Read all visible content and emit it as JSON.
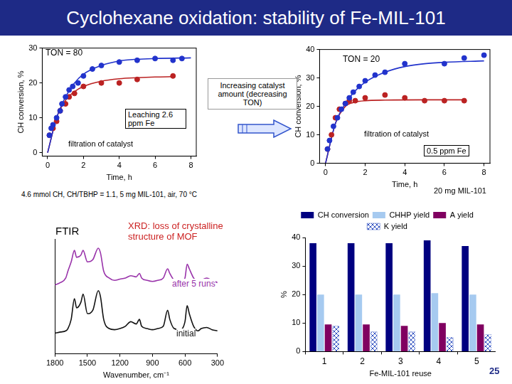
{
  "title": "Cyclohexane oxidation: stability of Fe-MIL-101",
  "texts": {
    "arrow_note": "Increasing catalyst amount (decreasing TON)",
    "conditions": "4.6 mmol CH, CH/TBHP = 1.1, 5 mg MIL-101, air, 70 °C",
    "xrd": "XRD: loss of crystalline structure of MOF",
    "page": "25"
  },
  "chart_data": [
    {
      "type": "scatter",
      "annotations": [
        "TON = 80",
        "Leaching 2.6 ppm Fe",
        "filtration of catalyst"
      ],
      "x_label": "Time, h",
      "y_label": "CH conversion, %",
      "xlim": [
        -0.3,
        8.3
      ],
      "xticks": [
        0,
        2,
        4,
        6,
        8
      ],
      "ylim": [
        -1,
        30
      ],
      "yticks": [
        0,
        10,
        20,
        30
      ],
      "grid": false,
      "series": [
        {
          "color": "#2233cc",
          "type": "scatter",
          "marker": "circle",
          "x": [
            0.1,
            0.2,
            0.3,
            0.5,
            0.7,
            0.8,
            1,
            1.2,
            1.4,
            1.7,
            2,
            2.5,
            3,
            4,
            5,
            6,
            7,
            7.5
          ],
          "values": [
            5,
            7,
            8,
            10,
            12,
            14,
            16,
            18,
            19,
            20,
            22,
            24,
            25,
            26,
            26.5,
            27,
            26.5,
            27
          ]
        },
        {
          "color": "#bb2222",
          "type": "scatter",
          "marker": "circle",
          "x": [
            0.1,
            0.3,
            0.5,
            0.7,
            1,
            1.2,
            1.5,
            2,
            3,
            4,
            5,
            7
          ],
          "values": [
            5,
            7,
            9,
            12,
            14,
            16,
            17,
            19,
            20,
            20,
            21,
            22
          ]
        },
        {
          "color": "#2233cc",
          "type": "line",
          "marker": "none",
          "line_style": "solid",
          "x": [
            0,
            0.5,
            1,
            1.5,
            2,
            3,
            4,
            5,
            6,
            8
          ],
          "values": [
            0,
            10,
            16,
            20,
            22.5,
            25,
            26.3,
            26.8,
            27,
            27.2
          ]
        },
        {
          "color": "#bb2222",
          "type": "line",
          "marker": "none",
          "line_style": "solid",
          "x": [
            0,
            0.5,
            1,
            1.5,
            2,
            3,
            4,
            5,
            6,
            7
          ],
          "values": [
            0,
            10,
            15,
            17.5,
            19,
            20.5,
            21.2,
            21.5,
            21.7,
            21.8
          ]
        }
      ]
    },
    {
      "type": "scatter",
      "annotations": [
        "TON = 20",
        "filtration of catalyst",
        "0.5 ppm Fe",
        "20 mg MIL-101"
      ],
      "x_label": "Time, h",
      "y_label": "CH conversion, %",
      "xlim": [
        -0.3,
        8.3
      ],
      "xticks": [
        0,
        2,
        4,
        6,
        8
      ],
      "ylim": [
        0,
        40
      ],
      "yticks": [
        0,
        10,
        20,
        30,
        40
      ],
      "grid": false,
      "series": [
        {
          "color": "#2233cc",
          "type": "scatter",
          "marker": "circle",
          "x": [
            0.1,
            0.2,
            0.4,
            0.6,
            0.8,
            1,
            1.2,
            1.4,
            1.7,
            2,
            2.5,
            3,
            4,
            6,
            7,
            8
          ],
          "values": [
            5,
            8,
            13,
            16,
            19,
            21,
            23,
            25,
            27,
            29,
            31,
            32,
            35,
            35,
            37,
            38
          ]
        },
        {
          "color": "#bb2222",
          "type": "scatter",
          "marker": "circle",
          "x": [
            0.1,
            0.3,
            0.5,
            0.7,
            1,
            1.2,
            1.5,
            2,
            3,
            4,
            5,
            6,
            7
          ],
          "values": [
            5,
            10,
            16,
            19,
            21,
            22,
            22,
            23,
            24,
            23,
            22,
            22,
            22
          ]
        },
        {
          "color": "#2233cc",
          "type": "line",
          "marker": "none",
          "line_style": "solid",
          "x": [
            0,
            0.5,
            1,
            1.5,
            2,
            3,
            4,
            5,
            6,
            8
          ],
          "values": [
            0,
            14,
            21,
            25.5,
            28.5,
            32,
            34,
            35,
            35.5,
            36
          ]
        },
        {
          "color": "#bb2222",
          "type": "line",
          "marker": "none",
          "line_style": "solid",
          "x": [
            0,
            0.5,
            1,
            1.5,
            2,
            3,
            5,
            7
          ],
          "values": [
            0,
            14,
            20,
            21.5,
            22,
            22.2,
            22.3,
            22.3
          ]
        }
      ]
    },
    {
      "type": "line",
      "title": "FTIR",
      "x_label": "Wavenumber, cm⁻¹",
      "xlim": [
        1800,
        300
      ],
      "xticks": [
        1800,
        1500,
        1200,
        900,
        600,
        300
      ],
      "ylim": [
        0,
        100
      ],
      "yticks": [],
      "tick_labels": "x",
      "grid": false,
      "series": [
        {
          "name": "after 5 runs",
          "color": "#9933aa",
          "type": "line",
          "marker": "none",
          "line_style": "solid",
          "x": [
            1800,
            1750,
            1700,
            1680,
            1650,
            1620,
            1600,
            1560,
            1540,
            1500,
            1450,
            1400,
            1380,
            1350,
            1300,
            1250,
            1200,
            1150,
            1100,
            1050,
            1020,
            1000,
            950,
            900,
            850,
            800,
            760,
            740,
            700,
            650,
            600,
            580,
            560,
            520,
            480,
            450,
            400,
            350,
            300
          ],
          "values": [
            60,
            62,
            66,
            72,
            80,
            90,
            84,
            86,
            90,
            80,
            82,
            92,
            88,
            72,
            66,
            64,
            65,
            66,
            68,
            67,
            70,
            66,
            64,
            63,
            64,
            66,
            74,
            70,
            64,
            62,
            66,
            78,
            74,
            66,
            62,
            64,
            66,
            64,
            62
          ]
        },
        {
          "name": "initial",
          "color": "#111111",
          "type": "line",
          "marker": "none",
          "line_style": "solid",
          "x": [
            1800,
            1750,
            1700,
            1680,
            1650,
            1620,
            1600,
            1560,
            1540,
            1500,
            1450,
            1400,
            1380,
            1350,
            1300,
            1250,
            1200,
            1150,
            1100,
            1050,
            1020,
            1000,
            950,
            900,
            850,
            800,
            760,
            740,
            700,
            650,
            600,
            580,
            560,
            520,
            480,
            450,
            400,
            350,
            300
          ],
          "values": [
            18,
            19,
            20,
            22,
            30,
            48,
            40,
            45,
            52,
            35,
            38,
            55,
            50,
            30,
            22,
            21,
            22,
            24,
            28,
            26,
            30,
            24,
            22,
            21,
            22,
            24,
            38,
            30,
            22,
            21,
            28,
            42,
            35,
            24,
            20,
            22,
            23,
            21,
            20
          ]
        }
      ]
    },
    {
      "type": "bar",
      "x_label": "Fe-MIL-101 reuse",
      "y_label": "%",
      "categories": [
        "1",
        "2",
        "3",
        "4",
        "5"
      ],
      "ylim": [
        0,
        40
      ],
      "yticks": [
        0,
        10,
        20,
        30,
        40
      ],
      "grid": false,
      "legend": "top",
      "series": [
        {
          "name": "CH conversion",
          "color": "#000080",
          "values": [
            38,
            38,
            38,
            39,
            37
          ]
        },
        {
          "name": "CHHP yield",
          "color": "#a6caf0",
          "values": [
            20,
            20,
            20,
            20.5,
            20
          ]
        },
        {
          "name": "A yield",
          "color": "#800060",
          "values": [
            9.5,
            9.5,
            9,
            10,
            9.5
          ]
        },
        {
          "name": "K yield",
          "color": "#3050c0",
          "values": [
            9,
            7,
            7,
            5,
            6
          ]
        }
      ]
    }
  ]
}
